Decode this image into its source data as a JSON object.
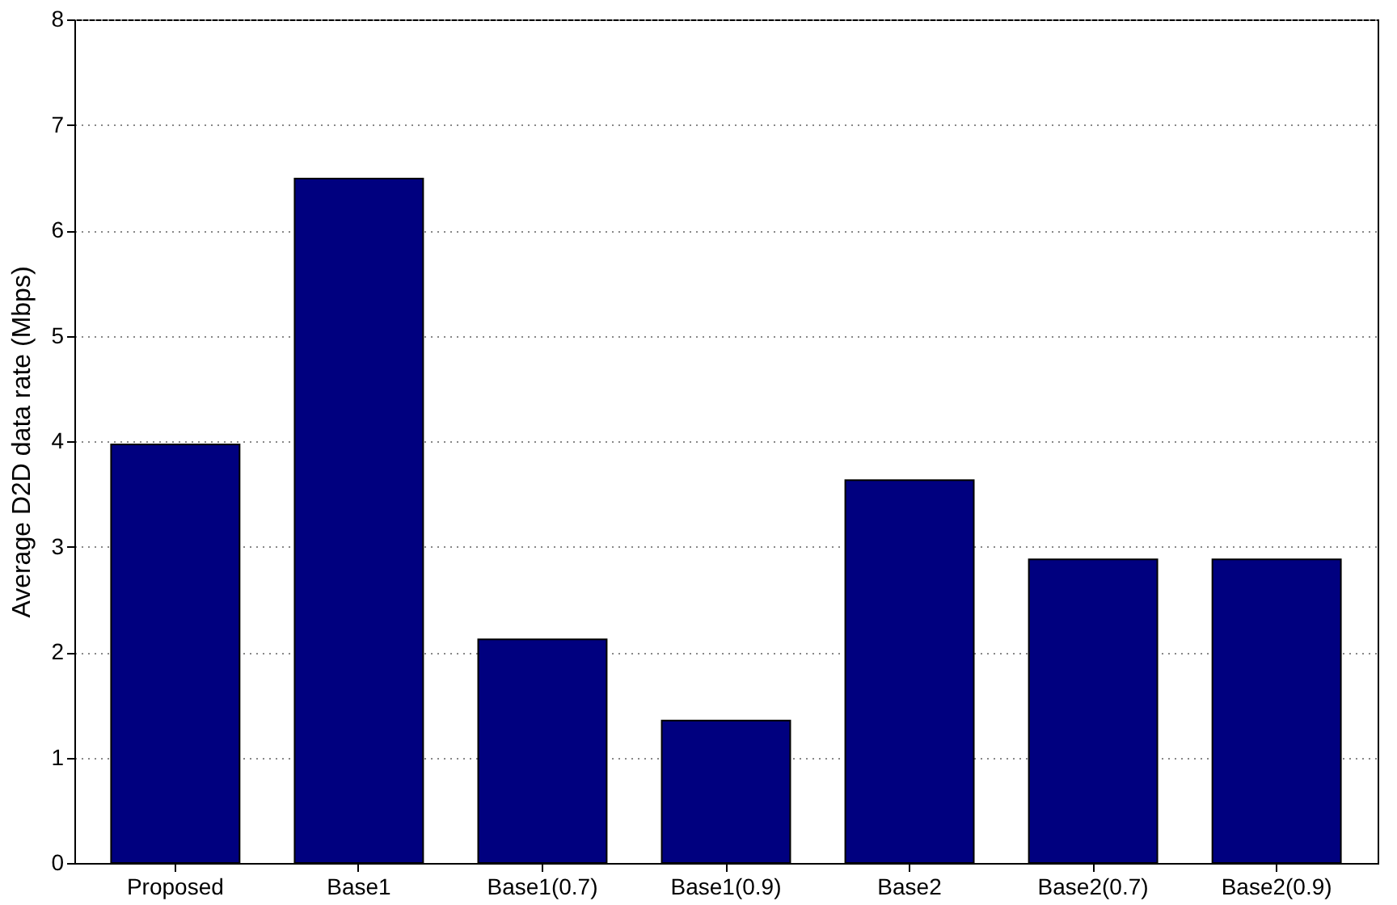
{
  "chart_data": {
    "type": "bar",
    "ylabel": "Average D2D data rate (Mbps)",
    "categories": [
      "Proposed",
      "Base1",
      "Base1(0.7)",
      "Base1(0.9)",
      "Base2",
      "Base2(0.7)",
      "Base2(0.9)"
    ],
    "values": [
      3.97,
      6.49,
      2.12,
      1.35,
      3.63,
      2.88,
      2.88
    ],
    "color": "#00007f",
    "ylim": [
      0,
      8
    ],
    "yticks": [
      0,
      1,
      2,
      3,
      4,
      5,
      6,
      7,
      8
    ],
    "grid": "y"
  }
}
